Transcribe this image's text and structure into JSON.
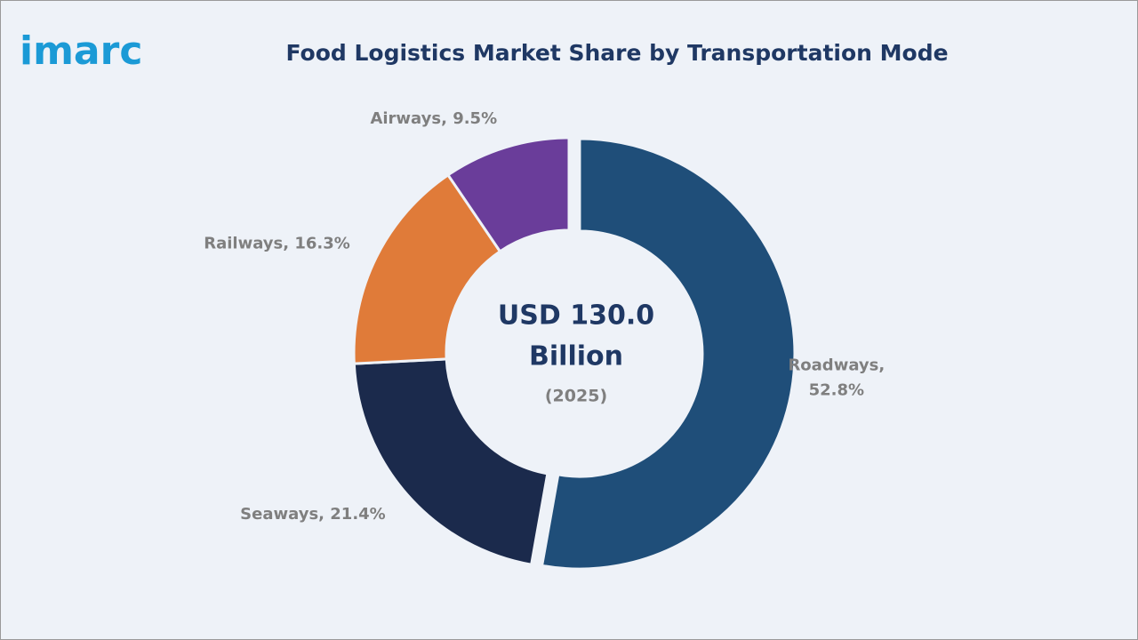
{
  "logo": "imarc",
  "chart_data": {
    "type": "donut",
    "title": "Food Logistics Market Share by Transportation Mode",
    "categories": [
      "Roadways",
      "Seaways",
      "Railways",
      "Airways"
    ],
    "values": [
      52.8,
      21.4,
      16.3,
      9.5
    ],
    "value_labels": [
      "Roadways, 52.8%",
      "Seaways, 21.4%",
      "Railways, 16.3%",
      "Airways, 9.5%"
    ],
    "colors": [
      "#1f4e79",
      "#1b2a4c",
      "#e07b39",
      "#6a3d9a"
    ],
    "center_text": [
      "USD 130.0",
      "Billion"
    ],
    "center_subtext": "(2025)"
  }
}
